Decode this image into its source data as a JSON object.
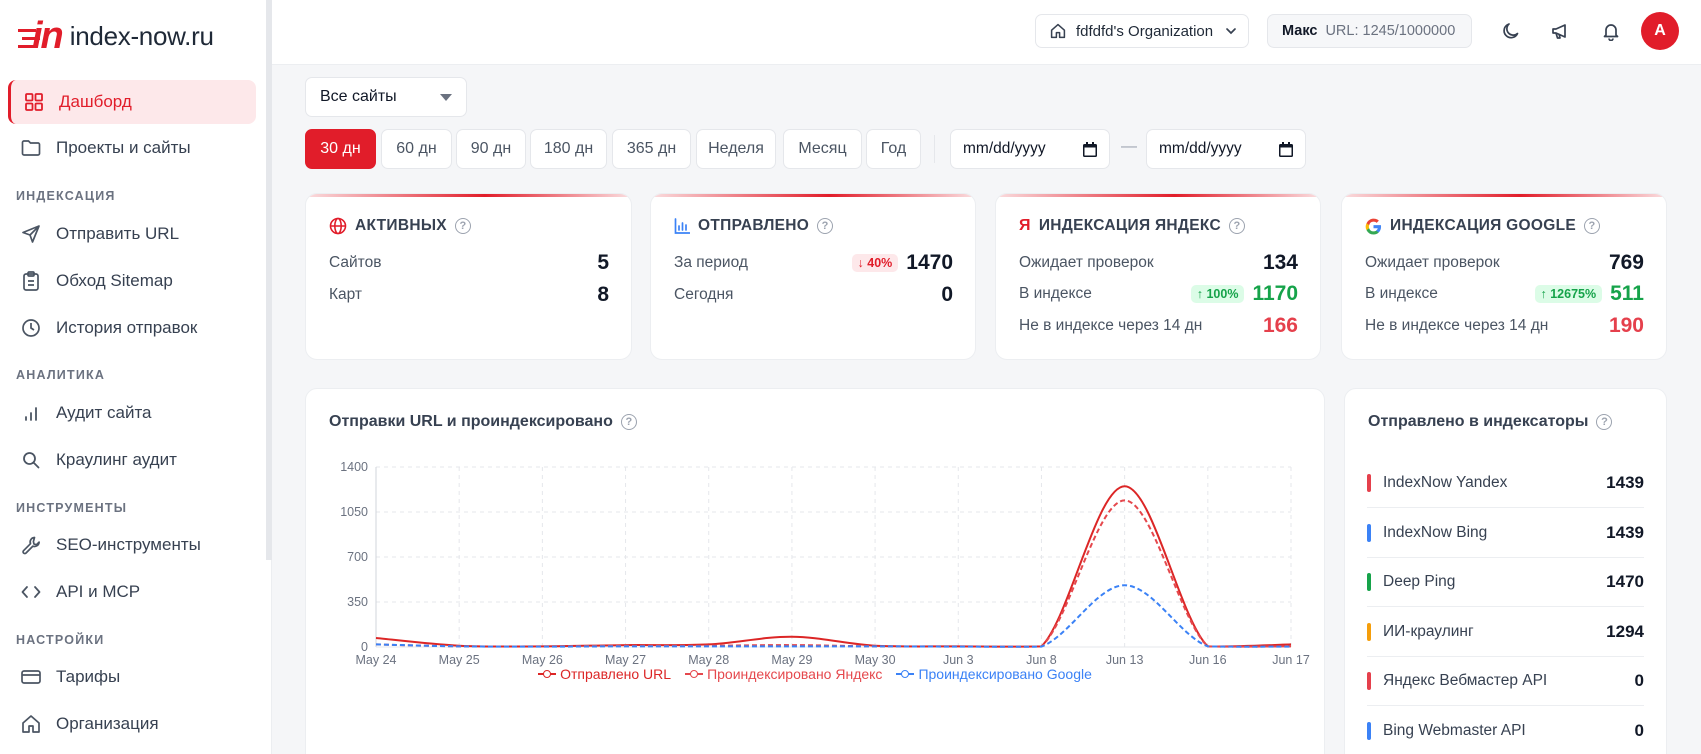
{
  "brand": {
    "logo_mark": "in",
    "logo_text": "index-now.ru"
  },
  "sidebar": {
    "items": [
      {
        "label": "Дашборд",
        "icon": "dashboard-icon",
        "active": true
      },
      {
        "label": "Проекты и сайты",
        "icon": "folder-icon"
      }
    ],
    "sections": [
      {
        "title": "ИНДЕКСАЦИЯ",
        "items": [
          {
            "label": "Отправить URL",
            "icon": "send-icon"
          },
          {
            "label": "Обход Sitemap",
            "icon": "clipboard-icon"
          },
          {
            "label": "История отправок",
            "icon": "clock-icon"
          }
        ]
      },
      {
        "title": "АНАЛИТИКА",
        "items": [
          {
            "label": "Аудит сайта",
            "icon": "bar-chart-icon"
          },
          {
            "label": "Краулинг аудит",
            "icon": "search-icon"
          }
        ]
      },
      {
        "title": "ИНСТРУМЕНТЫ",
        "items": [
          {
            "label": "SEO-инструменты",
            "icon": "wrench-icon"
          },
          {
            "label": "API и MCP",
            "icon": "code-icon"
          }
        ]
      },
      {
        "title": "НАСТРОЙКИ",
        "items": [
          {
            "label": "Тарифы",
            "icon": "credit-card-icon"
          },
          {
            "label": "Организация",
            "icon": "home-icon"
          }
        ]
      }
    ]
  },
  "header": {
    "org_name": "fdfdfd's Organization",
    "plan_name": "Макс",
    "url_quota": "URL: 1245/1000000",
    "avatar_letter": "A"
  },
  "filters": {
    "site_select": "Все сайты",
    "ranges": [
      "30 дн",
      "60 дн",
      "90 дн",
      "180 дн",
      "365 дн",
      "Неделя",
      "Месяц",
      "Год"
    ],
    "active_range": "30 дн",
    "date_placeholder": "mm/dd/yyyy",
    "date_separator": "—"
  },
  "stats": {
    "active": {
      "title": "АКТИВНЫХ",
      "rows": [
        {
          "label": "Сайтов",
          "value": "5"
        },
        {
          "label": "Карт",
          "value": "8"
        }
      ]
    },
    "sent": {
      "title": "ОТПРАВЛЕНО",
      "rows": [
        {
          "label": "За период",
          "value": "1470",
          "badge": "↓ 40%"
        },
        {
          "label": "Сегодня",
          "value": "0"
        }
      ]
    },
    "yandex": {
      "title": "ИНДЕКСАЦИЯ ЯНДЕКС",
      "rows": [
        {
          "label": "Ожидает проверок",
          "value": "134"
        },
        {
          "label": "В индексе",
          "value": "1170",
          "badge": "↑ 100%"
        },
        {
          "label": "Не в индексе через 14 дн",
          "value": "166"
        }
      ]
    },
    "google": {
      "title": "ИНДЕКСАЦИЯ GOOGLE",
      "rows": [
        {
          "label": "Ожидает проверок",
          "value": "769"
        },
        {
          "label": "В индексе",
          "value": "511",
          "badge": "↑ 12675%"
        },
        {
          "label": "Не в индексе через 14 дн",
          "value": "190"
        }
      ]
    }
  },
  "chart_card": {
    "title": "Отправки URL и проиндексировано"
  },
  "chart_data": {
    "type": "line",
    "categories": [
      "May 24",
      "May 25",
      "May 26",
      "May 27",
      "May 28",
      "May 29",
      "May 30",
      "Jun 3",
      "Jun 8",
      "Jun 13",
      "Jun 16",
      "Jun 17"
    ],
    "ylim": [
      0,
      1400
    ],
    "yticks": [
      0,
      350,
      700,
      1050,
      1400
    ],
    "grid": true,
    "legend_position": "bottom",
    "series": [
      {
        "name": "Отправлено URL",
        "color": "#dc2626",
        "dashed": false,
        "values": [
          70,
          10,
          5,
          15,
          20,
          80,
          10,
          5,
          5,
          1250,
          5,
          20
        ]
      },
      {
        "name": "Проиндексировано Яндекс",
        "color": "#e5484d",
        "dashed": true,
        "values": [
          20,
          5,
          5,
          10,
          10,
          15,
          5,
          5,
          5,
          1140,
          5,
          5
        ]
      },
      {
        "name": "Проиндексировано Google",
        "color": "#3b82f6",
        "dashed": true,
        "values": [
          20,
          5,
          3,
          5,
          5,
          5,
          5,
          3,
          3,
          480,
          5,
          3
        ]
      }
    ]
  },
  "indexers": {
    "title": "Отправлено в индексаторы",
    "items": [
      {
        "name": "IndexNow Yandex",
        "value": "1439",
        "color": "#e5404c"
      },
      {
        "name": "IndexNow Bing",
        "value": "1439",
        "color": "#3b82f6"
      },
      {
        "name": "Deep Ping",
        "value": "1470",
        "color": "#16a34a"
      },
      {
        "name": "ИИ-краулинг",
        "value": "1294",
        "color": "#f59e0b"
      },
      {
        "name": "Яндекс Вебмастер API",
        "value": "0",
        "color": "#e5404c"
      },
      {
        "name": "Bing Webmaster API",
        "value": "0",
        "color": "#3b82f6"
      }
    ]
  }
}
